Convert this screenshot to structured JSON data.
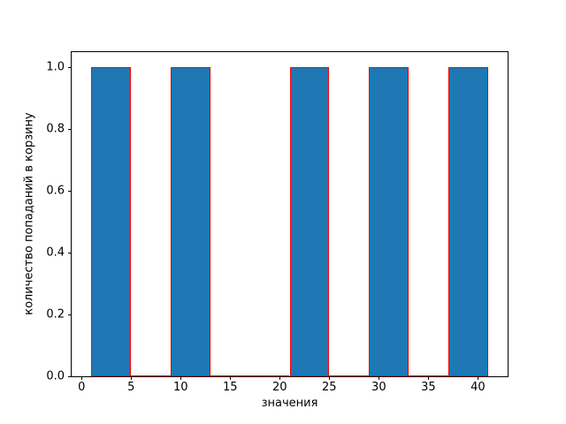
{
  "chart_data": {
    "type": "bar",
    "subtype": "histogram",
    "title": "",
    "xlabel": "значения",
    "ylabel": "количество попаданий в корзину",
    "xlim": [
      -1,
      43
    ],
    "ylim": [
      0,
      1.05
    ],
    "xticks": [
      0,
      5,
      10,
      15,
      20,
      25,
      30,
      35,
      40
    ],
    "yticks": [
      "0.0",
      "0.2",
      "0.4",
      "0.6",
      "0.8",
      "1.0"
    ],
    "grid": false,
    "legend": null,
    "bars": [
      {
        "x_start": 1,
        "x_end": 5,
        "count": 1
      },
      {
        "x_start": 5,
        "x_end": 9,
        "count": 0
      },
      {
        "x_start": 9,
        "x_end": 13,
        "count": 1
      },
      {
        "x_start": 13,
        "x_end": 17,
        "count": 0
      },
      {
        "x_start": 17,
        "x_end": 21,
        "count": 0
      },
      {
        "x_start": 21,
        "x_end": 25,
        "count": 1
      },
      {
        "x_start": 25,
        "x_end": 29,
        "count": 0
      },
      {
        "x_start": 29,
        "x_end": 33,
        "count": 1
      },
      {
        "x_start": 33,
        "x_end": 37,
        "count": 0
      },
      {
        "x_start": 37,
        "x_end": 41,
        "count": 1
      }
    ],
    "bar_fill_color": "#1f77b4",
    "bar_edge_color": "#ff0000",
    "axis_color": "#000000",
    "background_color": "#ffffff"
  }
}
